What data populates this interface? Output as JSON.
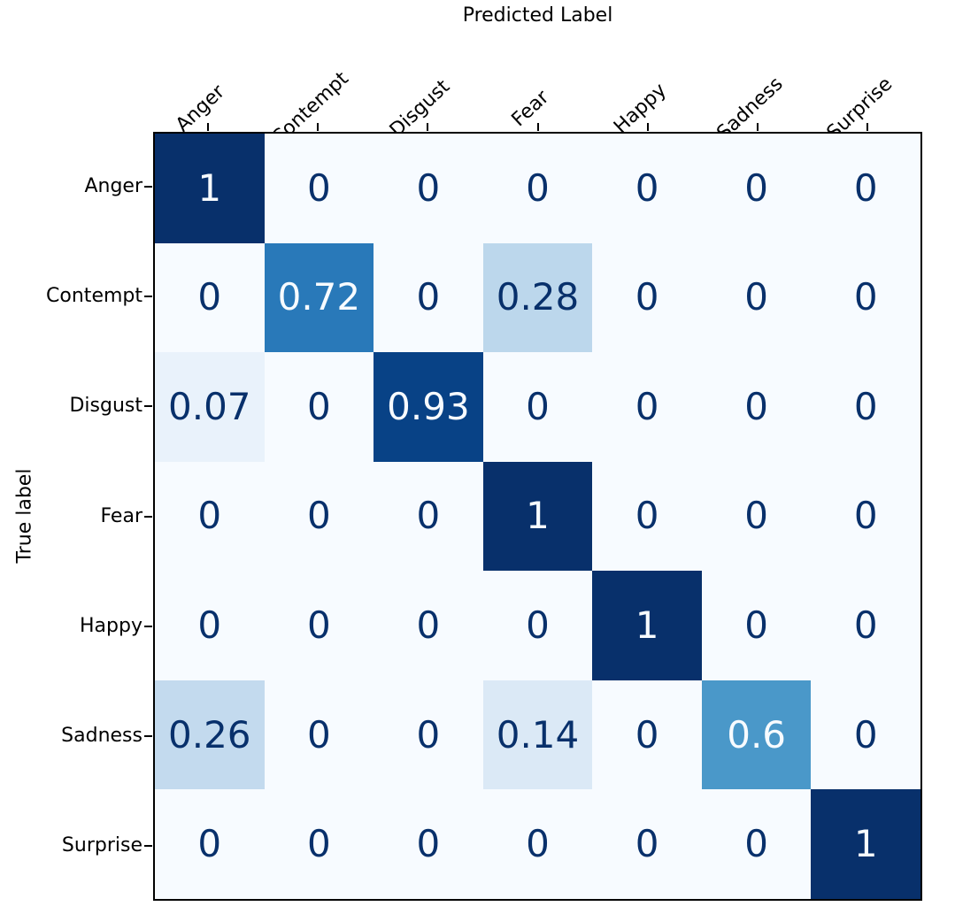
{
  "chart_data": {
    "type": "heatmap",
    "title": "Predicted Label",
    "xlabel": "Predicted Label",
    "ylabel": "True label",
    "x_categories": [
      "Anger",
      "Contempt",
      "Disgust",
      "Fear",
      "Happy",
      "Sadness",
      "Surprise"
    ],
    "y_categories": [
      "Anger",
      "Contempt",
      "Disgust",
      "Fear",
      "Happy",
      "Sadness",
      "Surprise"
    ],
    "matrix": [
      [
        1,
        0,
        0,
        0,
        0,
        0,
        0
      ],
      [
        0,
        0.72,
        0,
        0.28,
        0,
        0,
        0
      ],
      [
        0.07,
        0,
        0.93,
        0,
        0,
        0,
        0
      ],
      [
        0,
        0,
        0,
        1,
        0,
        0,
        0
      ],
      [
        0,
        0,
        0,
        0,
        1,
        0,
        0
      ],
      [
        0.26,
        0,
        0,
        0.14,
        0,
        0.6,
        0
      ],
      [
        0,
        0,
        0,
        0,
        0,
        0,
        1
      ]
    ],
    "value_range": [
      0,
      1
    ],
    "colormap": "Blues",
    "colormap_stops": [
      {
        "t": 0.0,
        "color": "#f7fbff"
      },
      {
        "t": 0.125,
        "color": "#deebf7"
      },
      {
        "t": 0.25,
        "color": "#c6dbef"
      },
      {
        "t": 0.375,
        "color": "#9ecae1"
      },
      {
        "t": 0.5,
        "color": "#6baed6"
      },
      {
        "t": 0.625,
        "color": "#4292c6"
      },
      {
        "t": 0.75,
        "color": "#2171b5"
      },
      {
        "t": 0.875,
        "color": "#08519c"
      },
      {
        "t": 1.0,
        "color": "#08306b"
      }
    ],
    "cell_text_color_dark": "#08306b",
    "cell_text_color_light": "#f7fbff",
    "text_color_threshold": 0.5,
    "axis_color": "#000000",
    "legend": "none",
    "grid": false
  }
}
